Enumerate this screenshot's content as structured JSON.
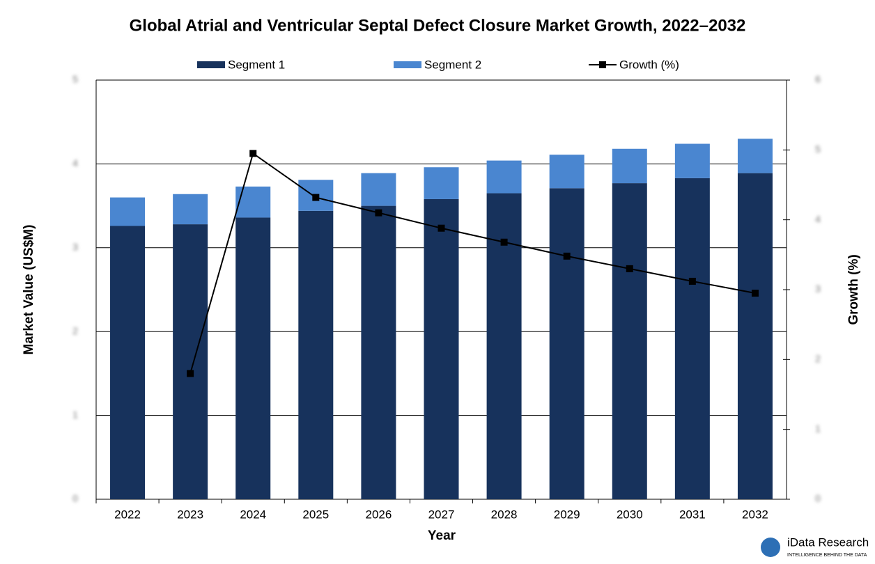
{
  "chart_data": {
    "type": "bar",
    "title": "Global Atrial and Ventricular Septal Defect Closure Market Growth, 2022–2032",
    "x_label": "Year",
    "y_label": "Market Value (US$M)",
    "y2_label": "Growth (%)",
    "categories": [
      "2022",
      "2023",
      "2024",
      "2025",
      "2026",
      "2027",
      "2028",
      "2029",
      "2030",
      "2031",
      "2032"
    ],
    "series": [
      {
        "name": "Segment 1",
        "color": "#17325c",
        "values": [
          3.26,
          3.28,
          3.36,
          3.44,
          3.5,
          3.58,
          3.65,
          3.71,
          3.77,
          3.83,
          3.89
        ]
      },
      {
        "name": "Segment 2",
        "color": "#4a86d0",
        "values": [
          0.34,
          0.36,
          0.37,
          0.37,
          0.39,
          0.38,
          0.39,
          0.4,
          0.41,
          0.41,
          0.41
        ]
      },
      {
        "name": "Growth (%)",
        "type": "line",
        "axis": "y2",
        "color": "#000000",
        "values": [
          null,
          1.8,
          4.95,
          4.32,
          4.1,
          3.88,
          3.68,
          3.48,
          3.3,
          3.12,
          2.95
        ]
      }
    ],
    "ylim": [
      0,
      5
    ],
    "yticks": [
      0,
      1,
      2,
      3,
      4,
      5
    ],
    "y2lim": [
      0,
      6
    ],
    "y2ticks": [
      0,
      1,
      2,
      3,
      4,
      5,
      6
    ],
    "grid": true,
    "stacked": true,
    "legend": "top",
    "logo": {
      "name": "iData Research",
      "tagline": "INTELLIGENCE BEHIND THE DATA"
    }
  }
}
